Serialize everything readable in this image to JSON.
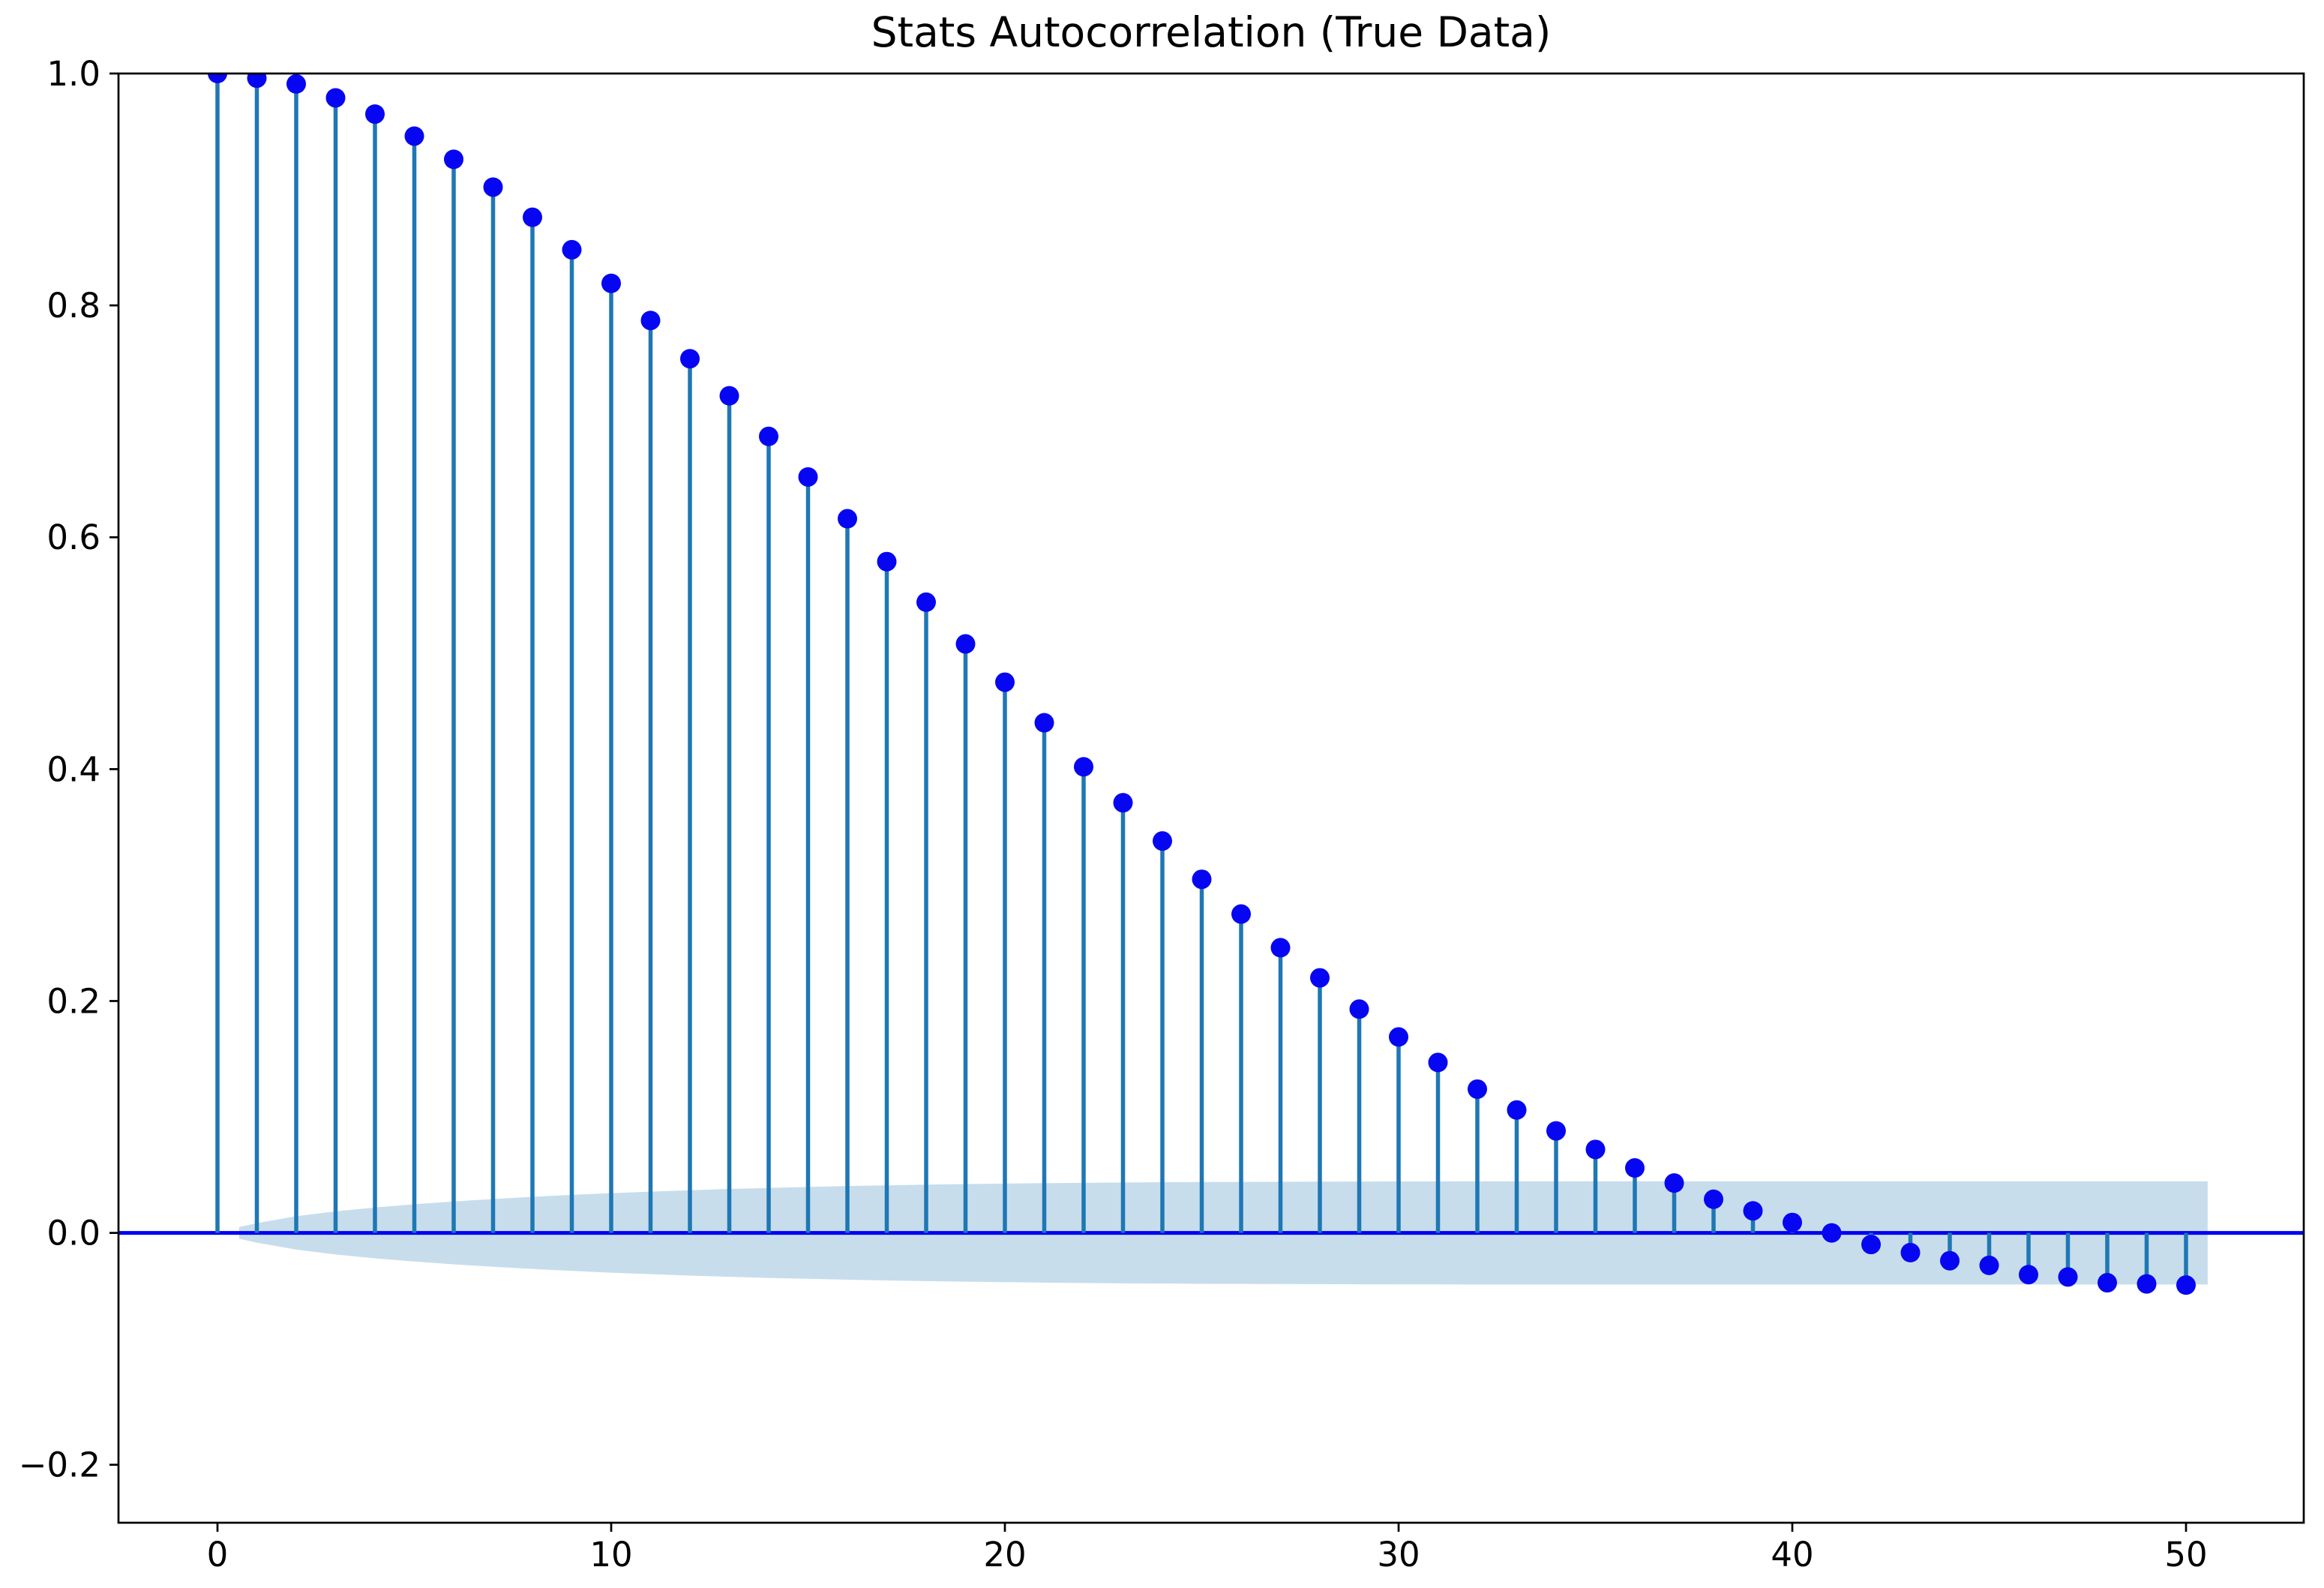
{
  "chart_data": {
    "type": "stem",
    "title": "Stats Autocorrelation (True Data)",
    "xlabel": "",
    "ylabel": "",
    "grid": false,
    "legend": null,
    "xlim": [
      -2.51,
      53.0
    ],
    "ylim": [
      -0.25,
      1.0
    ],
    "x_ticks": [
      {
        "v": 0,
        "label": "0"
      },
      {
        "v": 10,
        "label": "10"
      },
      {
        "v": 20,
        "label": "20"
      },
      {
        "v": 30,
        "label": "30"
      },
      {
        "v": 40,
        "label": "40"
      },
      {
        "v": 50,
        "label": "50"
      }
    ],
    "y_ticks": [
      {
        "v": 1.0,
        "label": "1.0"
      },
      {
        "v": 0.8,
        "label": "0.8"
      },
      {
        "v": 0.6,
        "label": "0.6"
      },
      {
        "v": 0.4,
        "label": "0.4"
      },
      {
        "v": 0.2,
        "label": "0.2"
      },
      {
        "v": 0.0,
        "label": "0.0"
      },
      {
        "v": -0.2,
        "label": "−0.2"
      }
    ],
    "lags_note": "lag k = array index, k = 0..50",
    "acf_values": [
      1.0,
      0.996,
      0.991,
      0.979,
      0.965,
      0.946,
      0.926,
      0.902,
      0.876,
      0.848,
      0.819,
      0.787,
      0.754,
      0.722,
      0.687,
      0.652,
      0.616,
      0.579,
      0.544,
      0.508,
      0.475,
      0.44,
      0.402,
      0.371,
      0.338,
      0.305,
      0.275,
      0.246,
      0.22,
      0.193,
      0.169,
      0.147,
      0.124,
      0.106,
      0.088,
      0.072,
      0.056,
      0.043,
      0.029,
      0.019,
      0.009,
      0.0,
      -0.01,
      -0.017,
      -0.024,
      -0.028,
      -0.036,
      -0.038,
      -0.043,
      -0.044,
      -0.045
    ],
    "confidence_band": {
      "center": 0.0,
      "start_lag": 0.55,
      "end_lag": 50.55,
      "start_half_width": 0.005,
      "half_widths_lag1_to_50": [
        0.0084,
        0.0144,
        0.0186,
        0.0219,
        0.0247,
        0.0271,
        0.0292,
        0.0311,
        0.0328,
        0.0343,
        0.0356,
        0.0368,
        0.0379,
        0.0388,
        0.0396,
        0.0404,
        0.041,
        0.0416,
        0.0421,
        0.0425,
        0.0429,
        0.0432,
        0.0435,
        0.0437,
        0.0439,
        0.044,
        0.0441,
        0.0442,
        0.0443,
        0.0444,
        0.0444,
        0.0445,
        0.0445,
        0.0445,
        0.0445,
        0.0445,
        0.0445,
        0.0445,
        0.0445,
        0.0445,
        0.0445,
        0.0445,
        0.0445,
        0.0445,
        0.0445,
        0.0445,
        0.0445,
        0.0445,
        0.0445,
        0.0445
      ]
    },
    "colors": {
      "stem": "#1f77b4",
      "marker": "#0606f2",
      "zero_line": "#0000f0",
      "band_fill": "#1f77b4",
      "band_opacity": 0.25,
      "spine": "#000000",
      "tick_text": "#000000",
      "background": "#ffffff"
    }
  }
}
